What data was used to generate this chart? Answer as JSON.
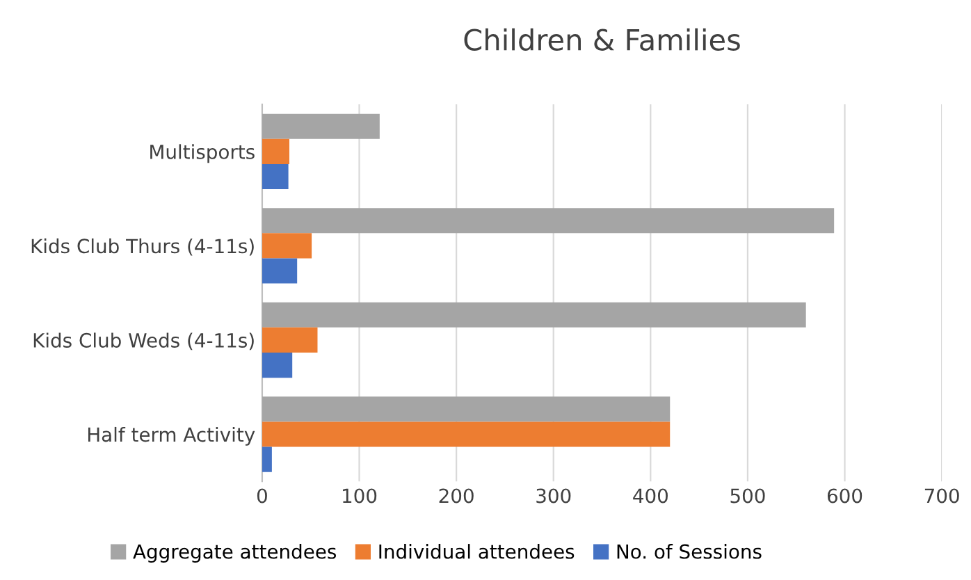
{
  "chart_data": {
    "type": "bar",
    "orientation": "horizontal",
    "title": "Children & Families",
    "categories": [
      "Multisports",
      "Kids Club Thurs (4-11s)",
      "Kids Club Weds (4-11s)",
      "Half term Activity"
    ],
    "series": [
      {
        "name": "Aggregate attendees",
        "color": "#a5a5a5",
        "values": [
          121,
          589,
          560,
          420
        ]
      },
      {
        "name": "Individual attendees",
        "color": "#ed7d31",
        "values": [
          28,
          51,
          57,
          420
        ]
      },
      {
        "name": "No. of Sessions",
        "color": "#4472c4",
        "values": [
          27,
          36,
          31,
          10
        ]
      }
    ],
    "xlim": [
      0,
      700
    ],
    "xticks": [
      0,
      100,
      200,
      300,
      400,
      500,
      600,
      700
    ],
    "grid": "x",
    "legend": "bottom"
  }
}
